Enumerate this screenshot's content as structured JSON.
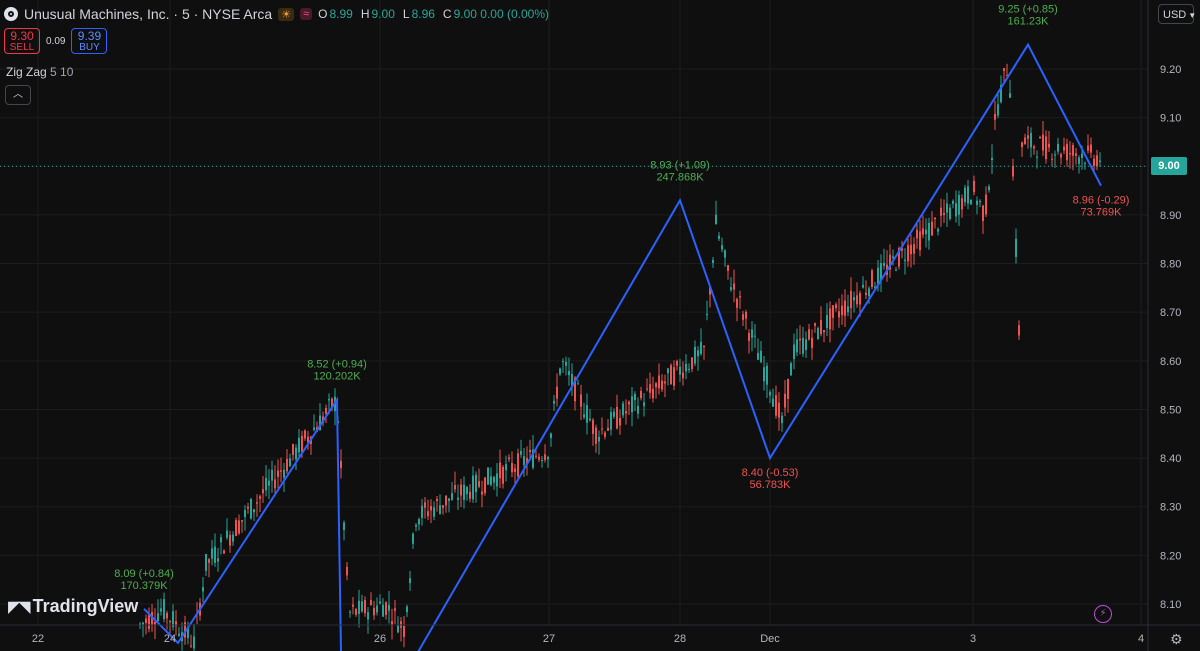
{
  "header": {
    "title": "Unusual Machines, Inc. · 5 · NYSE Arca",
    "badge_sun": "☀",
    "badge_wave": "≈",
    "ohlc": [
      {
        "k": "O",
        "v": "8.99"
      },
      {
        "k": "H",
        "v": "9.00"
      },
      {
        "k": "L",
        "v": "8.96"
      },
      {
        "k": "C",
        "v": "9.00 0.00 (0.00%)"
      }
    ]
  },
  "trade": {
    "sell_price": "9.30",
    "sell_label": "SELL",
    "spread": "0.09",
    "buy_price": "9.39",
    "buy_label": "BUY"
  },
  "indicator": {
    "name": "Zig Zag",
    "params": "5 10"
  },
  "currency": "USD",
  "brand": "TradingView",
  "current_price": "9.00",
  "colors": {
    "up": "#26a69a",
    "down": "#ef5350",
    "zigzag": "#2962ff",
    "background": "#0f0f0f",
    "current_price": "#26a69a"
  },
  "chart_data": {
    "type": "candlestick",
    "title": "",
    "interval": "5",
    "ylim": [
      8.04,
      9.34
    ],
    "y_ticks": [
      "9.20",
      "9.10",
      "9.00",
      "8.90",
      "8.80",
      "8.70",
      "8.60",
      "8.50",
      "8.40",
      "8.30",
      "8.20",
      "8.10"
    ],
    "x_ticks": [
      "22",
      "24",
      "26",
      "27",
      "28",
      "Dec",
      "3",
      "4"
    ],
    "zigzag": [
      {
        "x": "23",
        "price": 8.09,
        "label": "8.09 (+0.84)",
        "volume": "170.379K",
        "dir": "up"
      },
      {
        "x": "24",
        "price": 8.02,
        "label": "",
        "volume": "",
        "dir": "down"
      },
      {
        "x": "25",
        "price": 8.52,
        "label": "8.52 (+0.94)",
        "volume": "120.202K",
        "dir": "up"
      },
      {
        "x": "25",
        "price": 8.0,
        "label": "",
        "volume": "",
        "dir": "down"
      },
      {
        "x": "26",
        "price": 7.98,
        "label": "",
        "volume": "",
        "dir": "down"
      },
      {
        "x": "28",
        "price": 8.93,
        "label": "8.93 (+1.09)",
        "volume": "247.868K",
        "dir": "up"
      },
      {
        "x": "Dec",
        "price": 8.4,
        "label": "8.40 (-0.53)",
        "volume": "56.783K",
        "dir": "down"
      },
      {
        "x": "3",
        "price": 9.25,
        "label": "9.25 (+0.85)",
        "volume": "161.23K",
        "dir": "up"
      },
      {
        "x": "3",
        "price": 8.96,
        "label": "8.96 (-0.29)",
        "volume": "73.769K",
        "dir": "down"
      }
    ],
    "close_path": [
      [
        "22",
        7.9
      ],
      [
        "23",
        8.09
      ],
      [
        "24",
        8.02
      ],
      [
        "24",
        8.18
      ],
      [
        "25",
        8.1
      ],
      [
        "25",
        8.52
      ],
      [
        "25",
        8.08
      ],
      [
        "26",
        8.05
      ],
      [
        "26",
        8.28
      ],
      [
        "27",
        8.45
      ],
      [
        "27",
        8.42
      ],
      [
        "27",
        8.6
      ],
      [
        "28",
        8.62
      ],
      [
        "28",
        8.88
      ],
      [
        "28",
        8.78
      ],
      [
        "Dec",
        8.55
      ],
      [
        "Dec",
        8.47
      ],
      [
        "Dec",
        8.62
      ],
      [
        "Dec",
        8.64
      ],
      [
        "3",
        8.55
      ],
      [
        "3",
        8.95
      ],
      [
        "3",
        8.9
      ],
      [
        "3",
        9.12
      ],
      [
        "3",
        9.22
      ],
      [
        "3",
        9.05
      ],
      [
        "4",
        9.0
      ]
    ]
  }
}
